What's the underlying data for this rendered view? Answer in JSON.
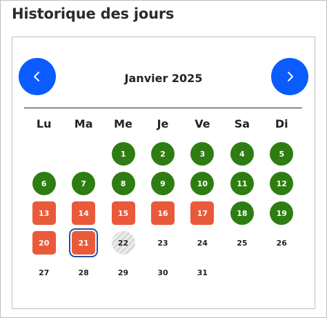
{
  "title": "Historique des jours",
  "calendar": {
    "month_label": "Janvier 2025",
    "prev_button": "prev-month",
    "next_button": "next-month",
    "weekdays": [
      "Lu",
      "Ma",
      "Me",
      "Je",
      "Ve",
      "Sa",
      "Di"
    ],
    "leading_blanks": 2,
    "days": [
      {
        "label": "1",
        "status": "ok"
      },
      {
        "label": "2",
        "status": "ok"
      },
      {
        "label": "3",
        "status": "ok"
      },
      {
        "label": "4",
        "status": "ok"
      },
      {
        "label": "5",
        "status": "ok"
      },
      {
        "label": "6",
        "status": "ok"
      },
      {
        "label": "7",
        "status": "ok"
      },
      {
        "label": "8",
        "status": "ok"
      },
      {
        "label": "9",
        "status": "ok"
      },
      {
        "label": "10",
        "status": "ok"
      },
      {
        "label": "11",
        "status": "ok"
      },
      {
        "label": "12",
        "status": "ok"
      },
      {
        "label": "13",
        "status": "ko"
      },
      {
        "label": "14",
        "status": "ko"
      },
      {
        "label": "15",
        "status": "ko"
      },
      {
        "label": "16",
        "status": "ko"
      },
      {
        "label": "17",
        "status": "ko"
      },
      {
        "label": "18",
        "status": "ok"
      },
      {
        "label": "19",
        "status": "ok"
      },
      {
        "label": "20",
        "status": "ko"
      },
      {
        "label": "21",
        "status": "ko",
        "selected": true
      },
      {
        "label": "22",
        "status": "pending"
      },
      {
        "label": "23",
        "status": "none"
      },
      {
        "label": "24",
        "status": "none"
      },
      {
        "label": "25",
        "status": "none"
      },
      {
        "label": "26",
        "status": "none"
      },
      {
        "label": "27",
        "status": "none"
      },
      {
        "label": "28",
        "status": "none"
      },
      {
        "label": "29",
        "status": "none"
      },
      {
        "label": "30",
        "status": "none"
      },
      {
        "label": "31",
        "status": "none"
      }
    ]
  },
  "colors": {
    "accent": "#0a5cff",
    "success": "#2e7d12",
    "failure": "#ea5a3a",
    "selected_outline": "#1f4fa3"
  },
  "icons": {
    "prev": "chevron-left-icon",
    "next": "chevron-right-icon"
  }
}
